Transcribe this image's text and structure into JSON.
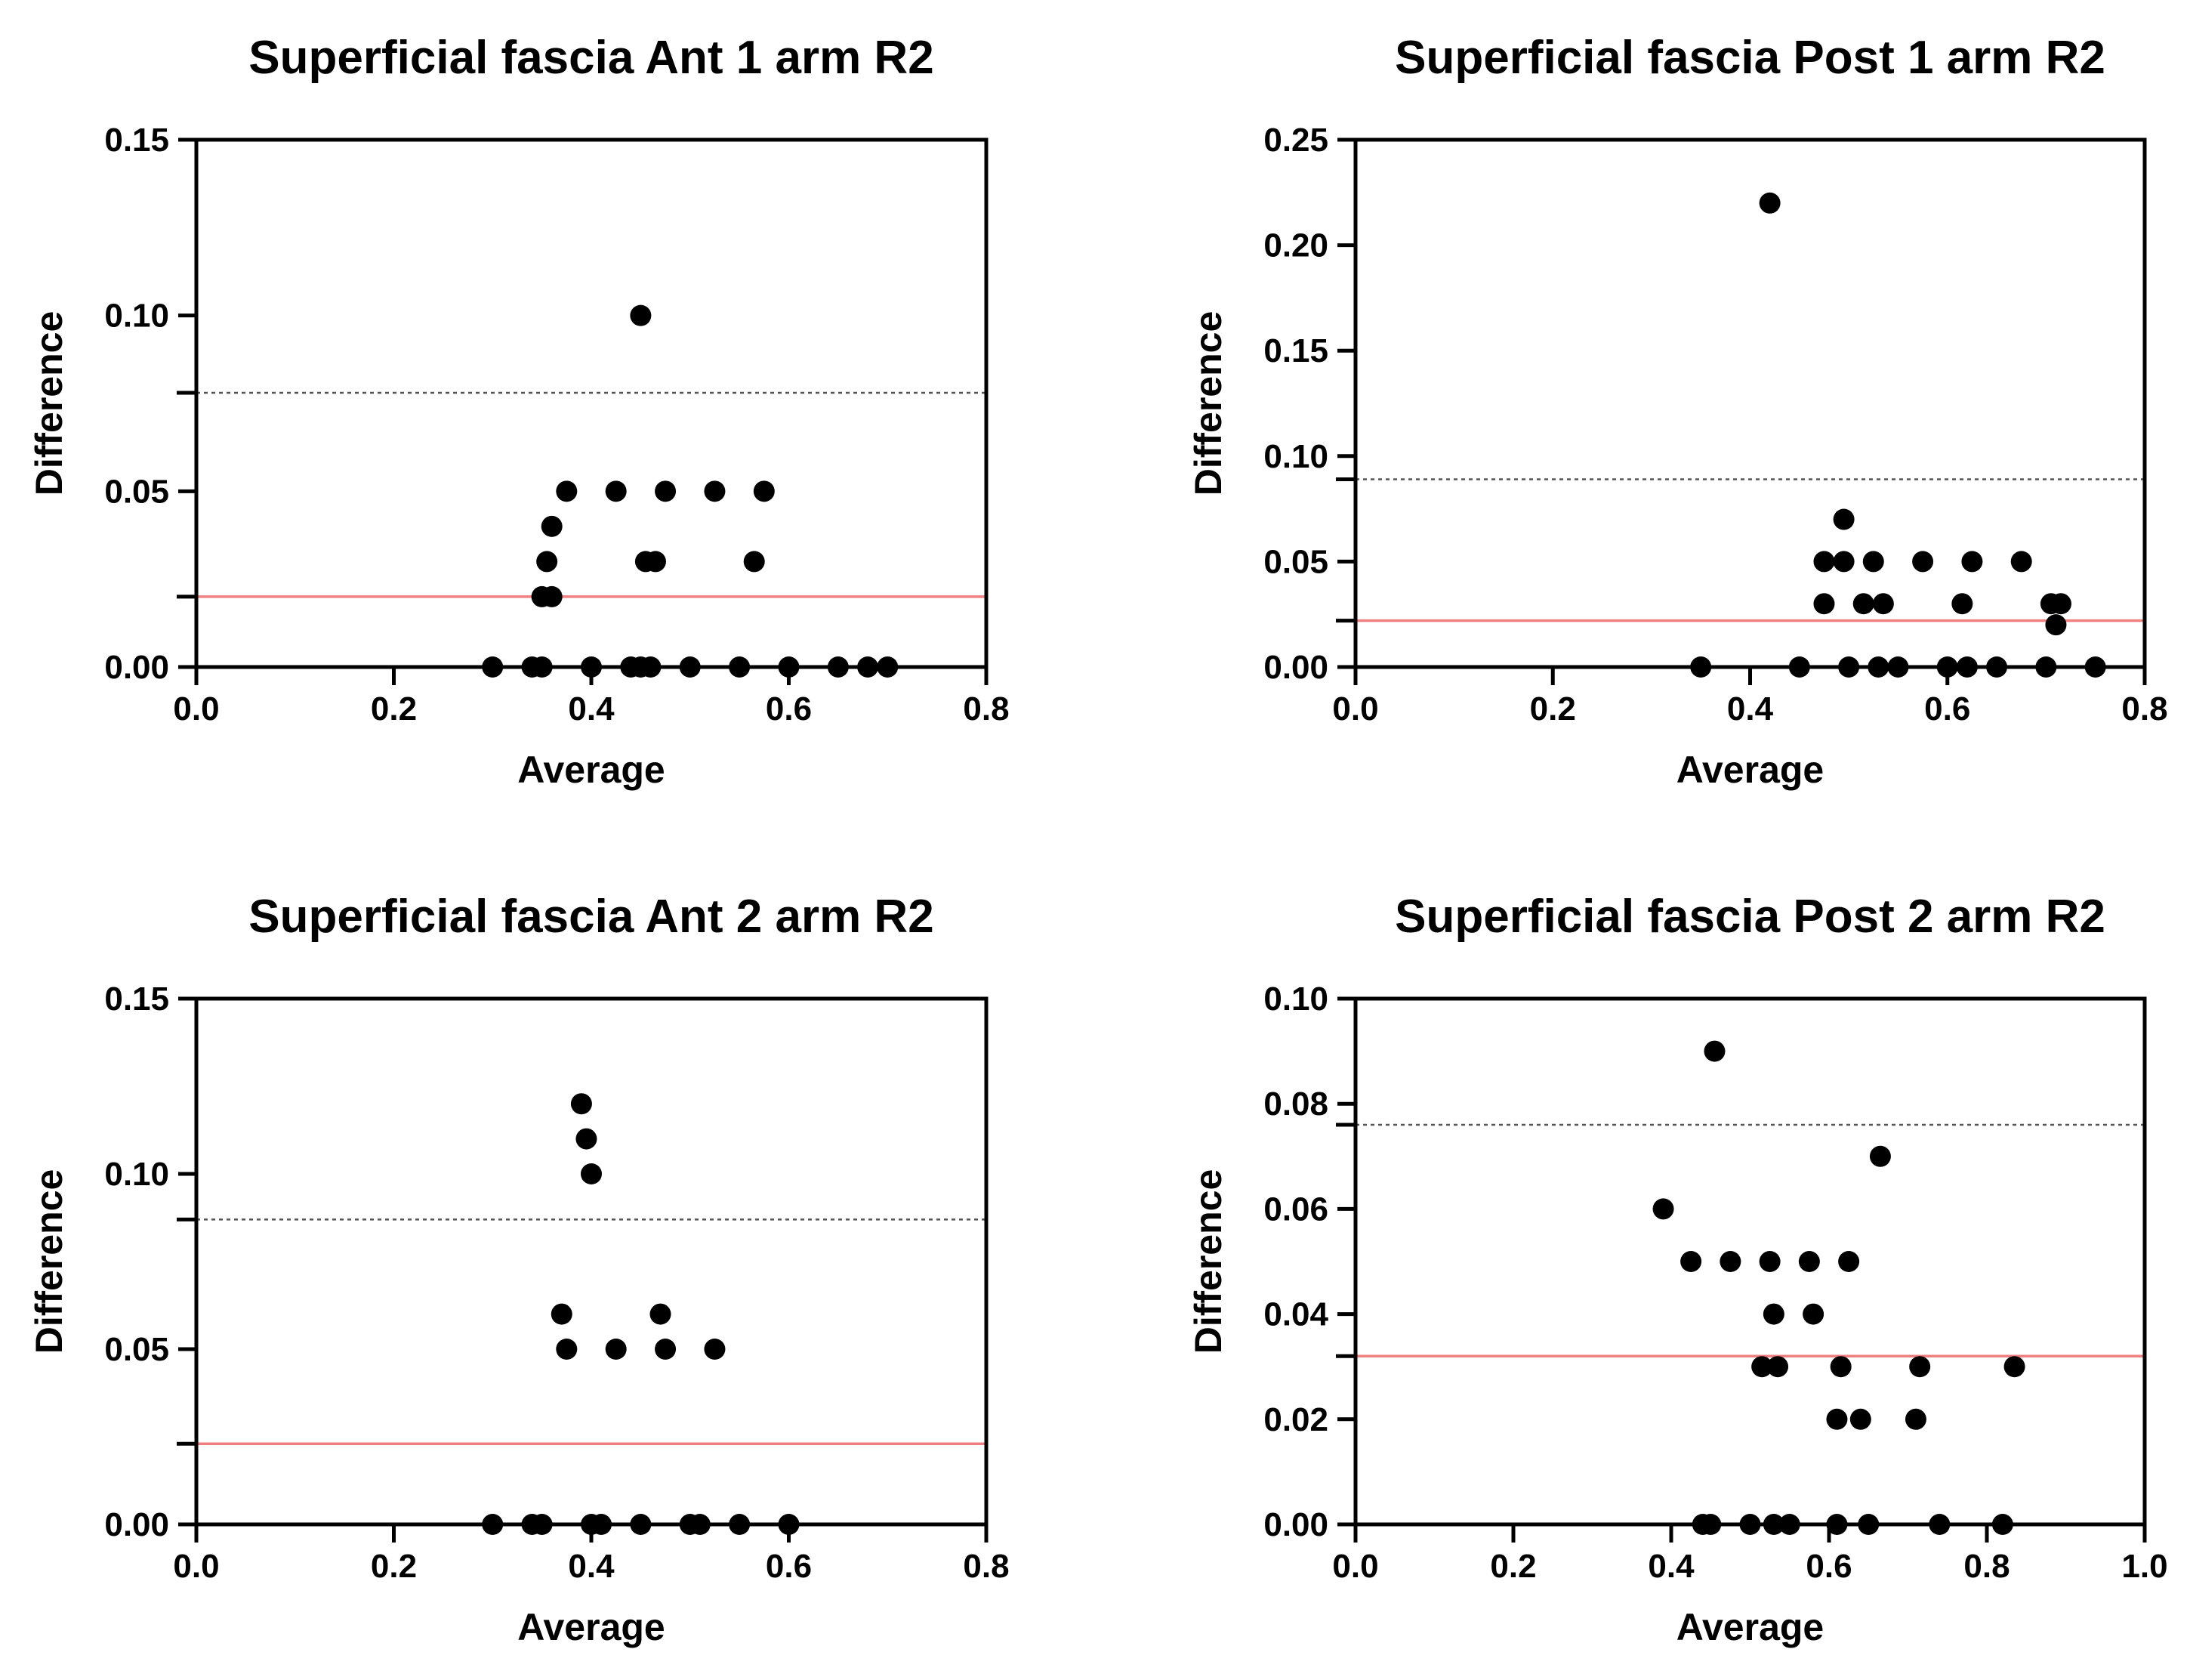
{
  "chart_data": [
    {
      "type": "scatter",
      "title": "Superficial fascia Ant 1 arm R2",
      "xlabel": "Average",
      "ylabel": "Difference",
      "xlim": [
        0,
        0.8
      ],
      "ylim": [
        0,
        0.15
      ],
      "xticks": [
        "0.0",
        "0.2",
        "0.4",
        "0.6",
        "0.8"
      ],
      "yticks": [
        "0.00",
        "0.05",
        "0.10",
        "0.15"
      ],
      "mean_line": 0.02,
      "upper_limit": 0.078,
      "colors": {
        "mean_line": "#f08080",
        "limit_line": "#555555",
        "points": "#000000"
      },
      "points": [
        {
          "x": 0.3,
          "y": 0.0
        },
        {
          "x": 0.34,
          "y": 0.0
        },
        {
          "x": 0.35,
          "y": 0.0
        },
        {
          "x": 0.4,
          "y": 0.0
        },
        {
          "x": 0.44,
          "y": 0.0
        },
        {
          "x": 0.45,
          "y": 0.0
        },
        {
          "x": 0.46,
          "y": 0.0
        },
        {
          "x": 0.5,
          "y": 0.0
        },
        {
          "x": 0.55,
          "y": 0.0
        },
        {
          "x": 0.6,
          "y": 0.0
        },
        {
          "x": 0.65,
          "y": 0.0
        },
        {
          "x": 0.68,
          "y": 0.0
        },
        {
          "x": 0.7,
          "y": 0.0
        },
        {
          "x": 0.35,
          "y": 0.02
        },
        {
          "x": 0.36,
          "y": 0.02
        },
        {
          "x": 0.355,
          "y": 0.03
        },
        {
          "x": 0.455,
          "y": 0.03
        },
        {
          "x": 0.465,
          "y": 0.03
        },
        {
          "x": 0.565,
          "y": 0.03
        },
        {
          "x": 0.36,
          "y": 0.04
        },
        {
          "x": 0.375,
          "y": 0.05
        },
        {
          "x": 0.425,
          "y": 0.05
        },
        {
          "x": 0.475,
          "y": 0.05
        },
        {
          "x": 0.525,
          "y": 0.05
        },
        {
          "x": 0.575,
          "y": 0.05
        },
        {
          "x": 0.45,
          "y": 0.1
        }
      ]
    },
    {
      "type": "scatter",
      "title": "Superficial fascia Post 1 arm R2",
      "xlabel": "Average",
      "ylabel": "Difference",
      "xlim": [
        0,
        0.8
      ],
      "ylim": [
        0,
        0.25
      ],
      "xticks": [
        "0.0",
        "0.2",
        "0.4",
        "0.6",
        "0.8"
      ],
      "yticks": [
        "0.00",
        "0.05",
        "0.10",
        "0.15",
        "0.20",
        "0.25"
      ],
      "mean_line": 0.022,
      "upper_limit": 0.089,
      "colors": {
        "mean_line": "#f08080",
        "limit_line": "#555555",
        "points": "#000000"
      },
      "points": [
        {
          "x": 0.35,
          "y": 0.0
        },
        {
          "x": 0.45,
          "y": 0.0
        },
        {
          "x": 0.5,
          "y": 0.0
        },
        {
          "x": 0.53,
          "y": 0.0
        },
        {
          "x": 0.55,
          "y": 0.0
        },
        {
          "x": 0.6,
          "y": 0.0
        },
        {
          "x": 0.62,
          "y": 0.0
        },
        {
          "x": 0.65,
          "y": 0.0
        },
        {
          "x": 0.7,
          "y": 0.0
        },
        {
          "x": 0.75,
          "y": 0.0
        },
        {
          "x": 0.71,
          "y": 0.02
        },
        {
          "x": 0.475,
          "y": 0.03
        },
        {
          "x": 0.515,
          "y": 0.03
        },
        {
          "x": 0.535,
          "y": 0.03
        },
        {
          "x": 0.615,
          "y": 0.03
        },
        {
          "x": 0.705,
          "y": 0.03
        },
        {
          "x": 0.715,
          "y": 0.03
        },
        {
          "x": 0.475,
          "y": 0.05
        },
        {
          "x": 0.495,
          "y": 0.05
        },
        {
          "x": 0.525,
          "y": 0.05
        },
        {
          "x": 0.575,
          "y": 0.05
        },
        {
          "x": 0.625,
          "y": 0.05
        },
        {
          "x": 0.675,
          "y": 0.05
        },
        {
          "x": 0.495,
          "y": 0.07
        },
        {
          "x": 0.42,
          "y": 0.22
        }
      ]
    },
    {
      "type": "scatter",
      "title": "Superficial fascia Ant 2 arm R2",
      "xlabel": "Average",
      "ylabel": "Difference",
      "xlim": [
        0,
        0.8
      ],
      "ylim": [
        0,
        0.15
      ],
      "xticks": [
        "0.0",
        "0.2",
        "0.4",
        "0.6",
        "0.8"
      ],
      "yticks": [
        "0.00",
        "0.05",
        "0.10",
        "0.15"
      ],
      "mean_line": 0.023,
      "upper_limit": 0.087,
      "colors": {
        "mean_line": "#f08080",
        "limit_line": "#555555",
        "points": "#000000"
      },
      "points": [
        {
          "x": 0.3,
          "y": 0.0
        },
        {
          "x": 0.34,
          "y": 0.0
        },
        {
          "x": 0.35,
          "y": 0.0
        },
        {
          "x": 0.4,
          "y": 0.0
        },
        {
          "x": 0.41,
          "y": 0.0
        },
        {
          "x": 0.45,
          "y": 0.0
        },
        {
          "x": 0.5,
          "y": 0.0
        },
        {
          "x": 0.51,
          "y": 0.0
        },
        {
          "x": 0.55,
          "y": 0.0
        },
        {
          "x": 0.6,
          "y": 0.0
        },
        {
          "x": 0.375,
          "y": 0.05
        },
        {
          "x": 0.425,
          "y": 0.05
        },
        {
          "x": 0.475,
          "y": 0.05
        },
        {
          "x": 0.525,
          "y": 0.05
        },
        {
          "x": 0.37,
          "y": 0.06
        },
        {
          "x": 0.47,
          "y": 0.06
        },
        {
          "x": 0.4,
          "y": 0.1
        },
        {
          "x": 0.395,
          "y": 0.11
        },
        {
          "x": 0.39,
          "y": 0.12
        }
      ]
    },
    {
      "type": "scatter",
      "title": "Superficial fascia Post 2 arm R2",
      "xlabel": "Average",
      "ylabel": "Difference",
      "xlim": [
        0,
        1.0
      ],
      "ylim": [
        0,
        0.1
      ],
      "xticks": [
        "0.0",
        "0.2",
        "0.4",
        "0.6",
        "0.8",
        "1.0"
      ],
      "yticks": [
        "0.00",
        "0.02",
        "0.04",
        "0.06",
        "0.08",
        "0.10"
      ],
      "mean_line": 0.032,
      "upper_limit": 0.076,
      "colors": {
        "mean_line": "#f08080",
        "limit_line": "#555555",
        "points": "#000000"
      },
      "points": [
        {
          "x": 0.44,
          "y": 0.0
        },
        {
          "x": 0.45,
          "y": 0.0
        },
        {
          "x": 0.5,
          "y": 0.0
        },
        {
          "x": 0.53,
          "y": 0.0
        },
        {
          "x": 0.55,
          "y": 0.0
        },
        {
          "x": 0.61,
          "y": 0.0
        },
        {
          "x": 0.65,
          "y": 0.0
        },
        {
          "x": 0.74,
          "y": 0.0
        },
        {
          "x": 0.82,
          "y": 0.0
        },
        {
          "x": 0.61,
          "y": 0.02
        },
        {
          "x": 0.64,
          "y": 0.02
        },
        {
          "x": 0.71,
          "y": 0.02
        },
        {
          "x": 0.515,
          "y": 0.03
        },
        {
          "x": 0.535,
          "y": 0.03
        },
        {
          "x": 0.615,
          "y": 0.03
        },
        {
          "x": 0.715,
          "y": 0.03
        },
        {
          "x": 0.835,
          "y": 0.03
        },
        {
          "x": 0.53,
          "y": 0.04
        },
        {
          "x": 0.58,
          "y": 0.04
        },
        {
          "x": 0.425,
          "y": 0.05
        },
        {
          "x": 0.475,
          "y": 0.05
        },
        {
          "x": 0.525,
          "y": 0.05
        },
        {
          "x": 0.575,
          "y": 0.05
        },
        {
          "x": 0.625,
          "y": 0.05
        },
        {
          "x": 0.39,
          "y": 0.06
        },
        {
          "x": 0.665,
          "y": 0.07
        },
        {
          "x": 0.455,
          "y": 0.09
        }
      ]
    }
  ]
}
